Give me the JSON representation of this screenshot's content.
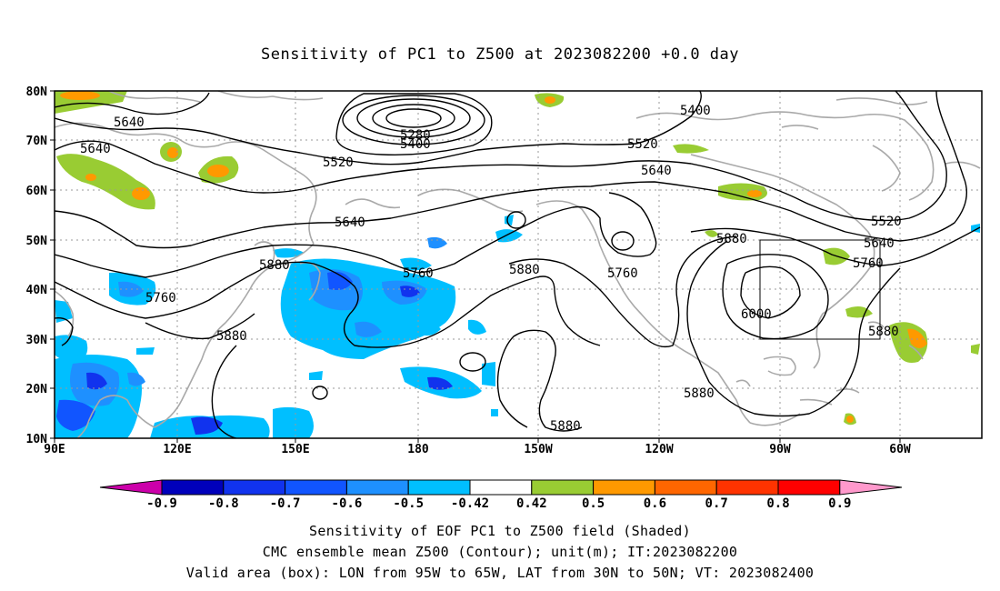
{
  "title": "Sensitivity of PC1 to Z500 at 2023082200 +0.0 day",
  "axes": {
    "lon_labels": [
      "90E",
      "120E",
      "150E",
      "180",
      "150W",
      "120W",
      "90W",
      "60W"
    ],
    "lat_labels": [
      "80N",
      "70N",
      "60N",
      "50N",
      "40N",
      "30N",
      "20N",
      "10N"
    ]
  },
  "colorbar": {
    "labels": [
      "-0.9",
      "-0.8",
      "-0.7",
      "-0.6",
      "-0.5",
      "-0.42",
      "0.42",
      "0.5",
      "0.6",
      "0.7",
      "0.8",
      "0.9"
    ],
    "colors": [
      "#cc00aa",
      "#0000bb",
      "#1133ee",
      "#1155ff",
      "#1e90ff",
      "#00bfff",
      "#ffffff",
      "#99cc33",
      "#ff9900",
      "#ff6600",
      "#ff3300",
      "#ff0000",
      "#ff99cc"
    ]
  },
  "contour_labels": [
    "5280",
    "5400",
    "5400",
    "5520",
    "5520",
    "5520",
    "5640",
    "5640",
    "5640",
    "5640",
    "5640",
    "5760",
    "5760",
    "5760",
    "5760",
    "5880",
    "5880",
    "5880",
    "5880",
    "5880",
    "5880",
    "5880",
    "6000"
  ],
  "valid_box": {
    "lon_min": -95,
    "lon_max": -65,
    "lat_min": 30,
    "lat_max": 50
  },
  "footer": {
    "line1": "Sensitivity of EOF PC1 to Z500 field (Shaded)",
    "line2": "CMC ensemble mean Z500 (Contour); unit(m); IT:2023082200",
    "line3": "Valid area (box): LON from 95W to 65W, LAT from 30N to 50N; VT: 2023082400"
  }
}
